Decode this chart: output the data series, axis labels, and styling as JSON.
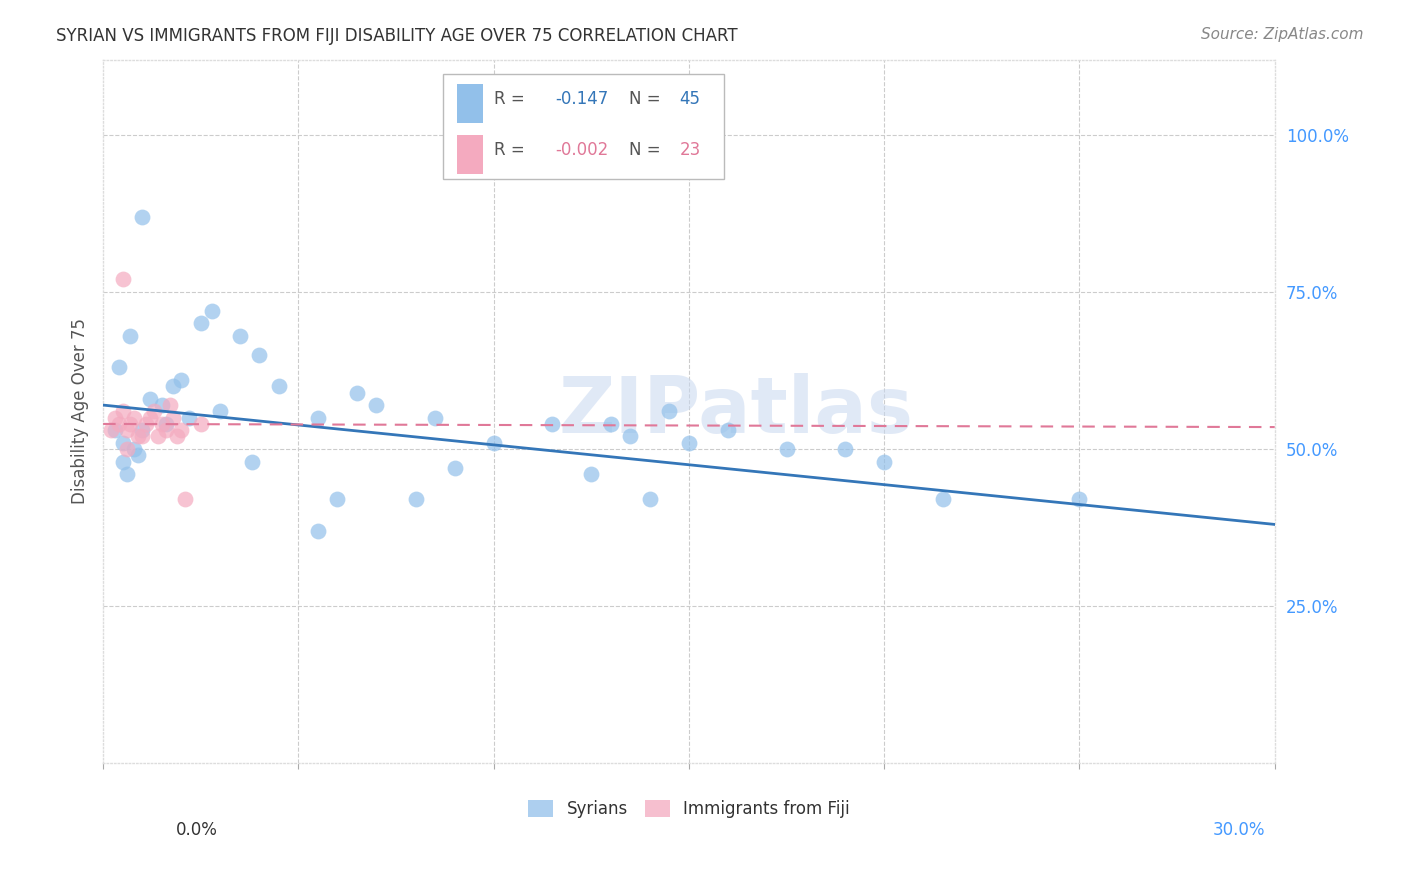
{
  "title": "SYRIAN VS IMMIGRANTS FROM FIJI DISABILITY AGE OVER 75 CORRELATION CHART",
  "source": "Source: ZipAtlas.com",
  "ylabel": "Disability Age Over 75",
  "xlim": [
    0,
    30
  ],
  "ylim": [
    0,
    112
  ],
  "watermark": "ZIPatlas",
  "legend_r_syrian": "-0.147",
  "legend_n_syrian": "45",
  "legend_r_fiji": "-0.002",
  "legend_n_fiji": "23",
  "syrian_color": "#92C0EA",
  "fiji_color": "#F4AABF",
  "trendline_syrian_color": "#3476B8",
  "trendline_fiji_color": "#E07898",
  "background_color": "#FFFFFF",
  "grid_color": "#CCCCCC",
  "ytick_color": "#4499FF",
  "title_color": "#333333",
  "source_color": "#888888",
  "ylabel_color": "#555555",
  "syrian_x": [
    0.3,
    0.5,
    0.8,
    0.5,
    0.6,
    0.9,
    1.0,
    1.5,
    1.2,
    0.7,
    0.4,
    1.8,
    2.5,
    2.8,
    3.5,
    2.0,
    1.0,
    3.0,
    2.2,
    1.6,
    4.5,
    5.5,
    6.5,
    4.0,
    7.0,
    8.5,
    10.0,
    11.5,
    13.0,
    14.5,
    15.0,
    16.0,
    17.5,
    19.0,
    20.0,
    21.5,
    5.5,
    9.0,
    12.5,
    14.0,
    3.8,
    6.0,
    8.0,
    25.0,
    13.5
  ],
  "syrian_y": [
    53,
    51,
    50,
    48,
    46,
    49,
    53,
    57,
    58,
    68,
    63,
    60,
    70,
    72,
    68,
    61,
    87,
    56,
    55,
    54,
    60,
    55,
    59,
    65,
    57,
    55,
    51,
    54,
    54,
    56,
    51,
    53,
    50,
    50,
    48,
    42,
    37,
    47,
    46,
    42,
    48,
    42,
    42,
    42,
    52
  ],
  "fiji_x": [
    0.2,
    0.3,
    0.4,
    0.5,
    0.6,
    0.6,
    0.7,
    0.8,
    0.9,
    1.0,
    1.1,
    1.2,
    1.3,
    1.4,
    1.5,
    1.6,
    1.7,
    1.8,
    1.9,
    2.0,
    2.1,
    2.5,
    0.5
  ],
  "fiji_y": [
    53,
    55,
    54,
    56,
    53,
    50,
    54,
    55,
    52,
    52,
    54,
    55,
    56,
    52,
    54,
    53,
    57,
    55,
    52,
    53,
    42,
    54,
    77
  ],
  "syrian_trend_x": [
    0,
    30
  ],
  "syrian_trend_y": [
    57.0,
    38.0
  ],
  "fiji_trend_x": [
    0,
    30
  ],
  "fiji_trend_y": [
    54.0,
    53.5
  ]
}
